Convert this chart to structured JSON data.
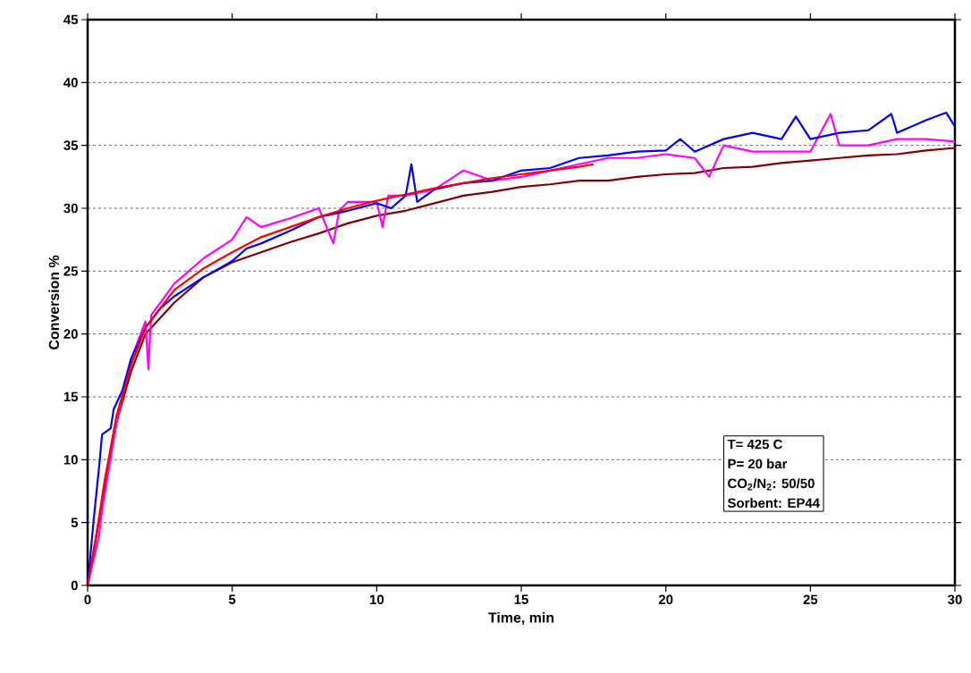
{
  "chart_data": {
    "type": "line",
    "xlabel": "Time, min",
    "ylabel": "Conversion %",
    "xlim": [
      0,
      30
    ],
    "ylim": [
      0,
      45
    ],
    "xticks": [
      0,
      5,
      10,
      15,
      20,
      25,
      30
    ],
    "yticks": [
      0,
      5,
      10,
      15,
      20,
      25,
      30,
      35,
      40,
      45
    ],
    "grid": "y",
    "marker": "none",
    "line_style": "solid",
    "annotations": [
      "T= 425 C",
      "P= 20 bar",
      "CO$_{2}$/N$_{2}$: 50/50",
      "Sorbent: EP44"
    ],
    "series": [
      {
        "color": "#800000",
        "x": [
          0,
          1,
          1.5,
          2,
          3,
          4,
          5,
          6,
          7,
          8,
          9,
          10,
          11,
          12,
          13,
          14,
          15,
          16,
          17,
          18,
          19,
          20,
          21,
          22,
          23,
          24,
          25,
          26,
          27,
          28,
          29,
          30
        ],
        "values": [
          0,
          13,
          17,
          20,
          22.5,
          24.5,
          25.7,
          26.5,
          27.3,
          28,
          28.8,
          29.4,
          29.8,
          30.4,
          31,
          31.3,
          31.7,
          31.9,
          32.2,
          32.2,
          32.5,
          32.7,
          32.8,
          33.2,
          33.3,
          33.6,
          33.8,
          34,
          34.2,
          34.3,
          34.6,
          34.8
        ]
      },
      {
        "color": "#ff00ff",
        "x": [
          0,
          0.4,
          0.5,
          1,
          1.5,
          2,
          2.1,
          2.2,
          3,
          4,
          5,
          5.5,
          6,
          7,
          8,
          8.5,
          8.7,
          9,
          10,
          10.2,
          10.4,
          11,
          12,
          13,
          14,
          15,
          16,
          17,
          18,
          19,
          20,
          21,
          21.5,
          22,
          23,
          24,
          25,
          25.7,
          26,
          27,
          28,
          29,
          30
        ],
        "values": [
          0,
          4,
          6,
          13,
          18,
          21,
          17.2,
          21.5,
          24,
          26,
          27.5,
          29.3,
          28.5,
          29.2,
          30,
          27.2,
          29.8,
          30.5,
          30.5,
          28.5,
          31,
          31,
          31.5,
          33,
          32.2,
          32.5,
          33,
          33.5,
          34,
          34,
          34.3,
          34,
          32.5,
          35,
          34.5,
          34.5,
          34.5,
          37.5,
          35,
          35,
          35.5,
          35.5,
          35.3
        ]
      },
      {
        "color": "#0000ff",
        "x": [
          0,
          0.2,
          0.4,
          0.5,
          0.8,
          0.9,
          1.2,
          1.5,
          2,
          2.5,
          3,
          4,
          5,
          5.5,
          6,
          7,
          8,
          9,
          10,
          10.5,
          11,
          11.2,
          11.4,
          12,
          13,
          14,
          15,
          16,
          17,
          18,
          19,
          20,
          20.5,
          21,
          22,
          23,
          24,
          24.5,
          25,
          26,
          27,
          27.8,
          28,
          29,
          29.7,
          30
        ],
        "values": [
          0,
          5,
          9.5,
          12,
          12.5,
          14,
          15.5,
          18,
          20.5,
          22,
          23,
          24.5,
          25.8,
          26.8,
          27.2,
          28.2,
          29.3,
          29.8,
          30.4,
          30,
          31,
          33.5,
          30.5,
          31.5,
          32,
          32.2,
          33,
          33.2,
          34,
          34.2,
          34.5,
          34.6,
          35.5,
          34.5,
          35.5,
          36,
          35.5,
          37.3,
          35.5,
          36,
          36.2,
          37.5,
          36,
          37,
          37.6,
          36.5
        ]
      },
      {
        "color": "#ff0000",
        "x": [
          0,
          0.3,
          0.6,
          1,
          1.5,
          2,
          2.5,
          3,
          4,
          5,
          6,
          7,
          8,
          9,
          10,
          11,
          12,
          13,
          14,
          15,
          16,
          17,
          17.5
        ],
        "values": [
          0,
          4,
          8.5,
          13.5,
          17.5,
          20.5,
          22,
          23.5,
          25.2,
          26.5,
          27.7,
          28.5,
          29.3,
          30,
          30.6,
          31.1,
          31.6,
          32,
          32.4,
          32.7,
          33,
          33.3,
          33.5
        ]
      }
    ]
  }
}
